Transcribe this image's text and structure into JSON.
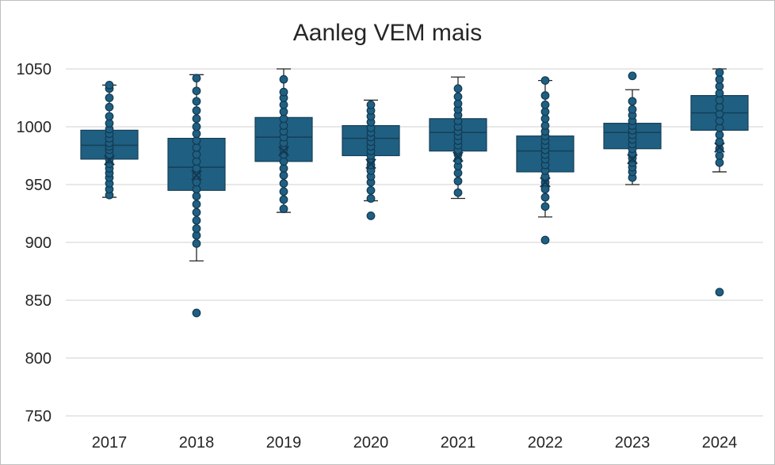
{
  "chart_data": {
    "type": "box",
    "title": "Aanleg VEM mais",
    "xlabel": "",
    "ylabel": "",
    "categories": [
      "2017",
      "2018",
      "2019",
      "2020",
      "2021",
      "2022",
      "2023",
      "2024"
    ],
    "ylim": [
      750,
      1050
    ],
    "yticks": [
      "750",
      "800",
      "850",
      "900",
      "950",
      "1000",
      "1050"
    ],
    "grid": true,
    "legend": "none",
    "colors": {
      "box_fill": "#1f5f82",
      "box_stroke": "#163f57",
      "point_fill": "#1f5f82",
      "point_stroke": "#123a52",
      "gridline": "#d9d9d9",
      "whisker": "#262626"
    },
    "boxes": [
      {
        "category": "2017",
        "q1": 972,
        "median": 984,
        "q3": 997,
        "mean": 971,
        "whisker_low": 939,
        "whisker_high": 1036,
        "points": [
          941,
          946,
          951,
          956,
          960,
          964,
          968,
          972,
          976,
          980,
          983,
          986,
          990,
          994,
          998,
          1003,
          1009,
          1017,
          1025,
          1033,
          1036
        ],
        "outliers": []
      },
      {
        "category": "2018",
        "q1": 945,
        "median": 965,
        "q3": 990,
        "mean": 958,
        "whisker_low": 884,
        "whisker_high": 1045,
        "points": [
          899,
          906,
          912,
          919,
          926,
          933,
          940,
          946,
          952,
          958,
          964,
          970,
          976,
          982,
          988,
          994,
          1000,
          1007,
          1014,
          1022,
          1031,
          1042
        ],
        "outliers": [
          839
        ]
      },
      {
        "category": "2019",
        "q1": 970,
        "median": 991,
        "q3": 1008,
        "mean": 979,
        "whisker_low": 926,
        "whisker_high": 1050,
        "points": [
          929,
          937,
          944,
          951,
          958,
          964,
          970,
          976,
          981,
          986,
          991,
          996,
          1001,
          1007,
          1013,
          1019,
          1025,
          1030,
          1041
        ],
        "outliers": []
      },
      {
        "category": "2020",
        "q1": 975,
        "median": 990,
        "q3": 1001,
        "mean": 968,
        "whisker_low": 936,
        "whisker_high": 1023,
        "points": [
          938,
          945,
          952,
          957,
          962,
          967,
          971,
          975,
          979,
          983,
          987,
          991,
          995,
          999,
          1004,
          1009,
          1014,
          1019
        ],
        "outliers": [
          923
        ]
      },
      {
        "category": "2021",
        "q1": 979,
        "median": 995,
        "q3": 1007,
        "mean": 974,
        "whisker_low": 938,
        "whisker_high": 1043,
        "points": [
          943,
          953,
          960,
          966,
          971,
          976,
          980,
          984,
          988,
          992,
          996,
          1000,
          1005,
          1010,
          1015,
          1020,
          1026,
          1033
        ],
        "outliers": []
      },
      {
        "category": "2022",
        "q1": 961,
        "median": 979,
        "q3": 992,
        "mean": 952,
        "whisker_low": 922,
        "whisker_high": 1040,
        "points": [
          931,
          939,
          946,
          952,
          957,
          962,
          967,
          972,
          976,
          980,
          984,
          988,
          992,
          996,
          1001,
          1007,
          1013,
          1019,
          1027,
          1040
        ],
        "outliers": [
          902
        ]
      },
      {
        "category": "2023",
        "q1": 981,
        "median": 995,
        "q3": 1003,
        "mean": 972,
        "whisker_low": 950,
        "whisker_high": 1032,
        "points": [
          956,
          961,
          965,
          969,
          973,
          977,
          981,
          985,
          989,
          993,
          997,
          1001,
          1005,
          1010,
          1015,
          1022
        ],
        "outliers": [
          1044
        ]
      },
      {
        "category": "2024",
        "q1": 997,
        "median": 1012,
        "q3": 1027,
        "mean": 982,
        "whisker_low": 961,
        "whisker_high": 1050,
        "points": [
          969,
          975,
          981,
          987,
          993,
          999,
          1005,
          1011,
          1017,
          1023,
          1029,
          1035,
          1041,
          1047
        ],
        "outliers": [
          857
        ]
      }
    ]
  }
}
